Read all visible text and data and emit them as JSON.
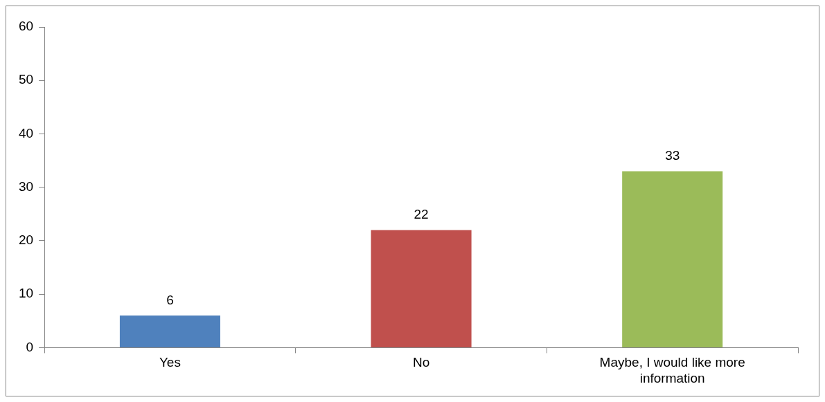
{
  "chart_data": {
    "type": "bar",
    "categories": [
      "Yes",
      "No",
      "Maybe, I would like more information"
    ],
    "values": [
      6,
      22,
      33
    ],
    "colors": [
      "#4f81bd",
      "#c0504d",
      "#9bbb59"
    ],
    "ylim": [
      0,
      60
    ],
    "yticks": [
      0,
      10,
      20,
      30,
      40,
      50,
      60
    ],
    "grid": false,
    "legend": false,
    "data_labels": true
  }
}
